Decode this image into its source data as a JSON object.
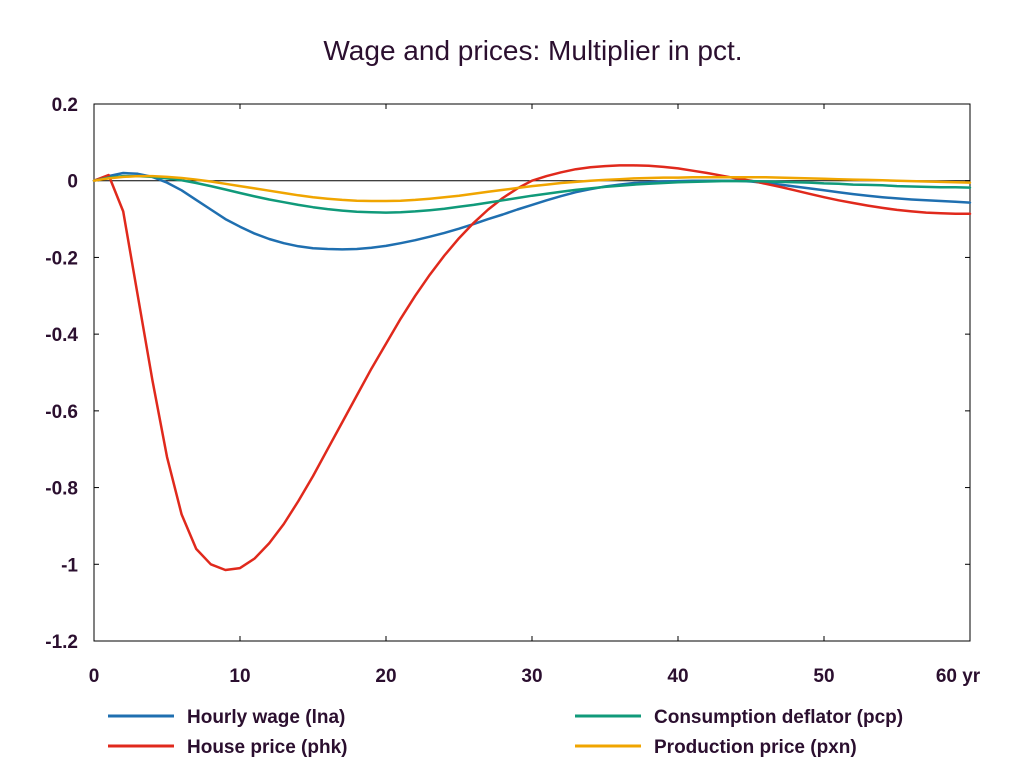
{
  "chart_data": {
    "type": "line",
    "title": "Wage and prices: Multiplier in pct.",
    "xlabel": "",
    "ylabel": "",
    "x_unit_label": "yr",
    "xlim": [
      0,
      60
    ],
    "ylim": [
      -1.2,
      0.2
    ],
    "x_ticks": [
      0,
      10,
      20,
      30,
      40,
      50,
      60
    ],
    "x_tick_labels": [
      "0",
      "10",
      "20",
      "30",
      "40",
      "50",
      "60"
    ],
    "y_ticks": [
      0.2,
      0,
      -0.2,
      -0.4,
      -0.6,
      -0.8,
      -1,
      -1.2
    ],
    "y_tick_labels": [
      "0.2",
      "0",
      "-0.2",
      "-0.4",
      "-0.6",
      "-0.8",
      "-1",
      "-1.2"
    ],
    "grid": false,
    "zero_line": true,
    "legend_placement": "bottom",
    "x": [
      0,
      1,
      2,
      3,
      4,
      5,
      6,
      7,
      8,
      9,
      10,
      11,
      12,
      13,
      14,
      15,
      16,
      17,
      18,
      19,
      20,
      21,
      22,
      23,
      24,
      25,
      26,
      27,
      28,
      29,
      30,
      31,
      32,
      33,
      34,
      35,
      36,
      37,
      38,
      39,
      40,
      41,
      42,
      43,
      44,
      45,
      46,
      47,
      48,
      49,
      50,
      51,
      52,
      53,
      54,
      55,
      56,
      57,
      58,
      59,
      60
    ],
    "series": [
      {
        "name": "Hourly wage (lna)",
        "color": "#1f6fb0",
        "values": [
          0,
          0.012,
          0.02,
          0.018,
          0.01,
          -0.005,
          -0.025,
          -0.05,
          -0.075,
          -0.1,
          -0.12,
          -0.138,
          -0.152,
          -0.163,
          -0.171,
          -0.176,
          -0.178,
          -0.179,
          -0.178,
          -0.175,
          -0.17,
          -0.163,
          -0.155,
          -0.146,
          -0.136,
          -0.125,
          -0.113,
          -0.1,
          -0.088,
          -0.075,
          -0.063,
          -0.051,
          -0.04,
          -0.03,
          -0.022,
          -0.015,
          -0.01,
          -0.006,
          -0.004,
          -0.002,
          -0.001,
          0,
          0,
          0,
          0,
          -0.002,
          -0.006,
          -0.01,
          -0.015,
          -0.02,
          -0.025,
          -0.03,
          -0.035,
          -0.039,
          -0.043,
          -0.046,
          -0.049,
          -0.051,
          -0.053,
          -0.055,
          -0.057
        ]
      },
      {
        "name": "House price (phk)",
        "color": "#e0291c",
        "values": [
          0,
          0.015,
          -0.08,
          -0.3,
          -0.52,
          -0.72,
          -0.87,
          -0.96,
          -1.0,
          -1.015,
          -1.01,
          -0.985,
          -0.945,
          -0.895,
          -0.835,
          -0.77,
          -0.7,
          -0.63,
          -0.56,
          -0.49,
          -0.425,
          -0.36,
          -0.3,
          -0.245,
          -0.195,
          -0.15,
          -0.11,
          -0.075,
          -0.045,
          -0.02,
          0,
          0.012,
          0.022,
          0.03,
          0.035,
          0.038,
          0.04,
          0.04,
          0.039,
          0.036,
          0.032,
          0.026,
          0.02,
          0.013,
          0.006,
          0,
          -0.008,
          -0.016,
          -0.025,
          -0.034,
          -0.043,
          -0.051,
          -0.058,
          -0.065,
          -0.071,
          -0.076,
          -0.08,
          -0.083,
          -0.085,
          -0.086,
          -0.086
        ]
      },
      {
        "name": "Consumption deflator (pcp)",
        "color": "#109a7a",
        "values": [
          0,
          0.008,
          0.012,
          0.012,
          0.01,
          0.006,
          0.001,
          -0.006,
          -0.014,
          -0.023,
          -0.032,
          -0.041,
          -0.049,
          -0.056,
          -0.063,
          -0.069,
          -0.074,
          -0.078,
          -0.081,
          -0.082,
          -0.083,
          -0.082,
          -0.08,
          -0.077,
          -0.073,
          -0.068,
          -0.063,
          -0.057,
          -0.051,
          -0.045,
          -0.039,
          -0.034,
          -0.029,
          -0.024,
          -0.02,
          -0.016,
          -0.013,
          -0.01,
          -0.008,
          -0.006,
          -0.004,
          -0.003,
          -0.002,
          -0.001,
          -0.001,
          -0.001,
          -0.002,
          -0.003,
          -0.004,
          -0.005,
          -0.007,
          -0.008,
          -0.01,
          -0.011,
          -0.012,
          -0.014,
          -0.015,
          -0.016,
          -0.017,
          -0.017,
          -0.018
        ]
      },
      {
        "name": "Production price (pxn)",
        "color": "#f0a500",
        "values": [
          0,
          0.006,
          0.01,
          0.012,
          0.012,
          0.01,
          0.007,
          0.003,
          -0.002,
          -0.008,
          -0.014,
          -0.02,
          -0.026,
          -0.032,
          -0.038,
          -0.043,
          -0.047,
          -0.05,
          -0.052,
          -0.053,
          -0.053,
          -0.052,
          -0.05,
          -0.047,
          -0.043,
          -0.039,
          -0.034,
          -0.029,
          -0.024,
          -0.019,
          -0.014,
          -0.01,
          -0.006,
          -0.003,
          0,
          0.002,
          0.004,
          0.006,
          0.007,
          0.008,
          0.008,
          0.009,
          0.009,
          0.009,
          0.009,
          0.009,
          0.009,
          0.008,
          0.007,
          0.006,
          0.005,
          0.004,
          0.003,
          0.002,
          0.001,
          0,
          -0.001,
          -0.002,
          -0.003,
          -0.004,
          -0.005
        ]
      }
    ]
  }
}
